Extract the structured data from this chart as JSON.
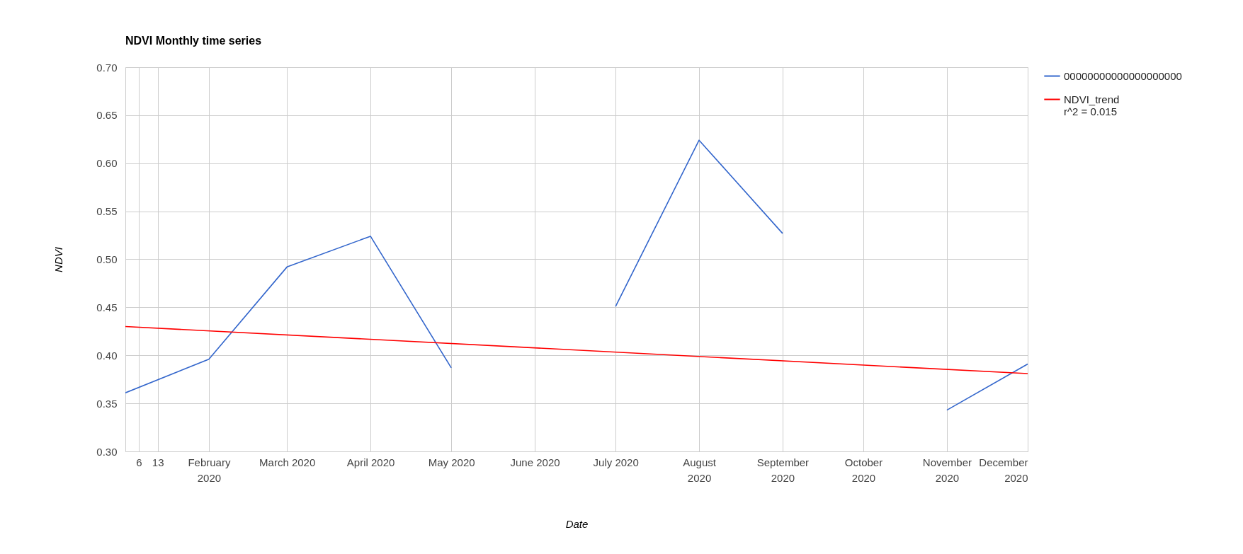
{
  "chart_data": {
    "type": "line",
    "title": "NDVI Monthly time series",
    "xlabel": "Date",
    "ylabel": "NDVI",
    "x": [
      "2020-01-01",
      "2020-02-01",
      "2020-03-01",
      "2020-04-01",
      "2020-05-01",
      "2020-06-01",
      "2020-07-01",
      "2020-08-01",
      "2020-09-01",
      "2020-10-01",
      "2020-11-01",
      "2020-12-01"
    ],
    "series": [
      {
        "name": "00000000000000000000",
        "color": "#3366cc",
        "values": [
          0.361,
          0.396,
          0.492,
          0.524,
          0.387,
          null,
          0.451,
          0.624,
          0.527,
          null,
          0.343,
          0.391
        ]
      },
      {
        "name": "NDVI_trend",
        "color": "#ff0000",
        "x": [
          "2020-01-01",
          "2020-12-01"
        ],
        "values": [
          0.43,
          0.381
        ]
      }
    ],
    "annotations": [
      "r^2 = 0.015"
    ],
    "xlim": [
      "2020-01-01",
      "2020-12-01"
    ],
    "xticks": [
      {
        "value": "2020-01-06",
        "label": "6"
      },
      {
        "value": "2020-01-13",
        "label": "13"
      },
      {
        "value": "2020-02-01",
        "label": "February 2020"
      },
      {
        "value": "2020-03-01",
        "label": "March 2020"
      },
      {
        "value": "2020-04-01",
        "label": "April 2020"
      },
      {
        "value": "2020-05-01",
        "label": "May 2020"
      },
      {
        "value": "2020-06-01",
        "label": "June 2020"
      },
      {
        "value": "2020-07-01",
        "label": "July 2020"
      },
      {
        "value": "2020-08-01",
        "label": "August 2020"
      },
      {
        "value": "2020-09-01",
        "label": "September 2020"
      },
      {
        "value": "2020-10-01",
        "label": "October 2020"
      },
      {
        "value": "2020-11-01",
        "label": "November 2020"
      },
      {
        "value": "2020-12-01",
        "label": "December 2020"
      }
    ],
    "ylim": [
      0.3,
      0.7
    ],
    "yticks": [
      {
        "value": 0.3,
        "label": "0.30"
      },
      {
        "value": 0.35,
        "label": "0.35"
      },
      {
        "value": 0.4,
        "label": "0.40"
      },
      {
        "value": 0.45,
        "label": "0.45"
      },
      {
        "value": 0.5,
        "label": "0.50"
      },
      {
        "value": 0.55,
        "label": "0.55"
      },
      {
        "value": 0.6,
        "label": "0.60"
      },
      {
        "value": 0.65,
        "label": "0.65"
      },
      {
        "value": 0.7,
        "label": "0.70"
      }
    ],
    "grid": true,
    "legend": "top right",
    "line_style": "solid",
    "marker": "none"
  }
}
